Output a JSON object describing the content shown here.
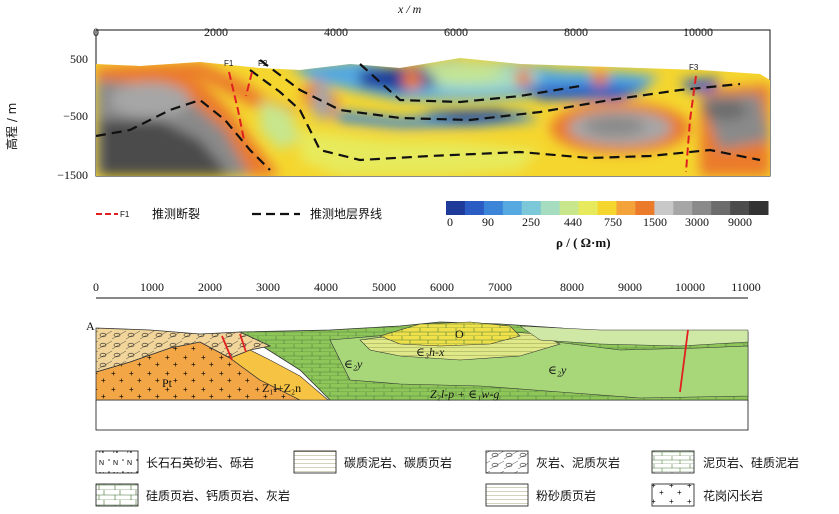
{
  "top_section": {
    "x_axis_label": "x / m",
    "x_ticks": [
      "0",
      "2000",
      "4000",
      "6000",
      "8000",
      "10000"
    ],
    "y_axis_label": "高程 / m",
    "y_ticks": [
      "500",
      "−500",
      "−1500"
    ],
    "fault_labels": [
      "F1",
      "F2",
      "F3"
    ],
    "legend": {
      "fault_sample": "F1",
      "fault_text": "推测断裂",
      "boundary_text": "推测地层界线"
    },
    "colorbar": {
      "ticks": [
        "0",
        "90",
        "250",
        "440",
        "750",
        "1500",
        "3000",
        "9000"
      ],
      "unit": "ρ / ( Ω·m)",
      "colors": [
        "#1f3b9a",
        "#2a5cc4",
        "#3b84d8",
        "#55a8e0",
        "#7cc8d8",
        "#a6dcc0",
        "#c8e68c",
        "#e7ea5c",
        "#f5d62e",
        "#f3a33a",
        "#eb7a2a",
        "#c8c8c8",
        "#a6a6a6",
        "#8a8a8a",
        "#6c6c6c",
        "#4c4c4c",
        "#333333"
      ]
    }
  },
  "bottom_section": {
    "x_ticks": [
      "0",
      "1000",
      "2000",
      "3000",
      "4000",
      "5000",
      "6000",
      "7000",
      "8000",
      "9000",
      "10000",
      "11000"
    ],
    "corner_label": "A",
    "unit_labels": {
      "pt": "Pt",
      "z1": "Z₁l+Z₂n",
      "o": "O",
      "e3": "∈₃h-x",
      "e2_left": "∈₂y",
      "e2_right": "∈₂y",
      "z2": "Z₂l-p + ∈₁w-g"
    }
  },
  "lithology_legend": [
    {
      "icon": "feldspar-quartz-sandstone-icon",
      "text": "长石石英砂岩、砾岩"
    },
    {
      "icon": "carbonaceous-mudstone-icon",
      "text": "碳质泥岩、碳质页岩"
    },
    {
      "icon": "limestone-icon",
      "text": "灰岩、泥质灰岩"
    },
    {
      "icon": "mudstone-icon",
      "text": "泥页岩、硅质泥岩"
    },
    {
      "icon": "siliceous-shale-icon",
      "text": "硅质页岩、钙质页岩、灰岩"
    },
    {
      "icon": "silty-shale-icon",
      "text": "粉砂质页岩"
    },
    {
      "icon": "granodiorite-icon",
      "text": "花岗闪长岩"
    }
  ]
}
